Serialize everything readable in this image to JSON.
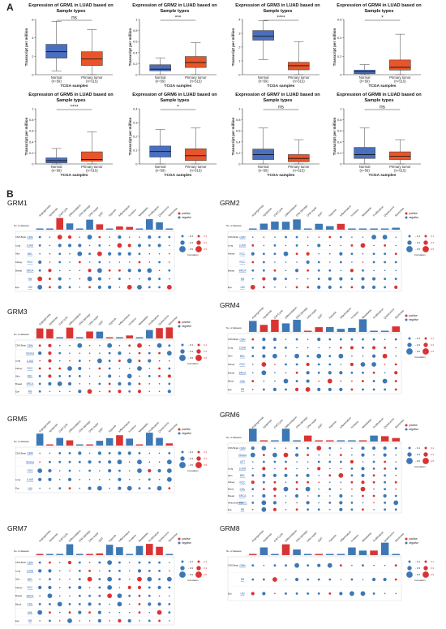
{
  "panel_labels": {
    "a": "A",
    "b": "B"
  },
  "colors": {
    "normal": "#4a6fbf",
    "tumor": "#e8552a",
    "positive": "#d93434",
    "negative": "#3d78b5"
  },
  "boxplot_common": {
    "ylabel": "Transcript per million",
    "xlabel": "TCGA samples",
    "cat_normal": "Normal",
    "cat_tumor": "Primary tumor",
    "n_normal": "(n=59)",
    "n_tumor": "(n=515)"
  },
  "chart_data": [
    {
      "type": "box",
      "title": "Expression of GRM1 in LUAD based on Sample types",
      "sig": "ns",
      "ylim": [
        0,
        6
      ],
      "yticks": [
        0,
        2,
        4,
        6
      ],
      "boxes": [
        {
          "category": "Normal",
          "min": 0.4,
          "q1": 1.8,
          "median": 2.5,
          "q3": 3.3,
          "max": 5.8
        },
        {
          "category": "Primary tumor",
          "min": 0,
          "q1": 1.0,
          "median": 1.7,
          "q3": 2.5,
          "max": 4.9
        }
      ]
    },
    {
      "type": "box",
      "title": "Expression of GRM2 in LUAD based on Sample types",
      "sig": "***",
      "ylim": [
        0,
        1
      ],
      "yticks": [
        0,
        0.2,
        0.4,
        0.6,
        0.8,
        1
      ],
      "boxes": [
        {
          "category": "Normal",
          "min": 0,
          "q1": 0.07,
          "median": 0.1,
          "q3": 0.18,
          "max": 0.3
        },
        {
          "category": "Primary tumor",
          "min": 0,
          "q1": 0.13,
          "median": 0.22,
          "q3": 0.33,
          "max": 0.58
        }
      ]
    },
    {
      "type": "box",
      "title": "Expression of GRM3 in LUAD based on Sample types",
      "sig": "****",
      "ylim": [
        0,
        4
      ],
      "yticks": [
        0,
        1,
        2,
        3,
        4
      ],
      "boxes": [
        {
          "category": "Normal",
          "min": 1.1,
          "q1": 2.5,
          "median": 2.8,
          "q3": 3.2,
          "max": 3.9
        },
        {
          "category": "Primary tumor",
          "min": 0,
          "q1": 0.35,
          "median": 0.65,
          "q3": 0.9,
          "max": 2.4
        }
      ]
    },
    {
      "type": "box",
      "title": "Expression of GRM4 in LUAD based on Sample types",
      "sig": "*",
      "ylim": [
        0,
        0.6
      ],
      "yticks": [
        0,
        0.2,
        0.4,
        0.6
      ],
      "boxes": [
        {
          "category": "Normal",
          "min": 0,
          "q1": 0.01,
          "median": 0.03,
          "q3": 0.05,
          "max": 0.11
        },
        {
          "category": "Primary tumor",
          "min": 0,
          "q1": 0.05,
          "median": 0.08,
          "q3": 0.16,
          "max": 0.44
        }
      ]
    },
    {
      "type": "box",
      "title": "Expression of GRM5 in LUAD based on Sample types",
      "sig": "****",
      "ylim": [
        0,
        1
      ],
      "yticks": [
        0,
        0.2,
        0.4,
        0.6,
        0.8,
        1
      ],
      "boxes": [
        {
          "category": "Normal",
          "min": 0,
          "q1": 0.02,
          "median": 0.06,
          "q3": 0.11,
          "max": 0.28
        },
        {
          "category": "Primary tumor",
          "min": 0,
          "q1": 0.05,
          "median": 0.08,
          "q3": 0.22,
          "max": 0.58
        }
      ]
    },
    {
      "type": "box",
      "title": "Expression of GRM6 in LUAD based on Sample types",
      "sig": "*",
      "ylim": [
        0,
        0.4
      ],
      "yticks": [
        0,
        0.1,
        0.2,
        0.3,
        0.4
      ],
      "boxes": [
        {
          "category": "Normal",
          "min": 0,
          "q1": 0.05,
          "median": 0.09,
          "q3": 0.13,
          "max": 0.25
        },
        {
          "category": "Primary tumor",
          "min": 0,
          "q1": 0.025,
          "median": 0.06,
          "q3": 0.11,
          "max": 0.26
        }
      ]
    },
    {
      "type": "box",
      "title": "Expression of GRM7 in LUAD based on Sample types",
      "sig": "ns",
      "ylim": [
        0,
        1
      ],
      "yticks": [
        0,
        0.2,
        0.4,
        0.6,
        0.8,
        1
      ],
      "boxes": [
        {
          "category": "Normal",
          "min": 0,
          "q1": 0.08,
          "median": 0.17,
          "q3": 0.27,
          "max": 0.65
        },
        {
          "category": "Primary tumor",
          "min": 0,
          "q1": 0.04,
          "median": 0.1,
          "q3": 0.17,
          "max": 0.44
        }
      ]
    },
    {
      "type": "box",
      "title": "Expression of GRM8 in LUAD based on Sample types",
      "sig": "ns",
      "ylim": [
        0,
        1
      ],
      "yticks": [
        0,
        0.2,
        0.4,
        0.6,
        0.8,
        1
      ],
      "boxes": [
        {
          "category": "Normal",
          "min": 0,
          "q1": 0.1,
          "median": 0.17,
          "q3": 0.3,
          "max": 0.65
        },
        {
          "category": "Primary tumor",
          "min": 0,
          "q1": 0.08,
          "median": 0.14,
          "q3": 0.22,
          "max": 0.44
        }
      ]
    }
  ],
  "cancersea": {
    "states": [
      "Angiogenesis",
      "Apoptosis",
      "Cell Cycle",
      "Differentiation",
      "DNA damage",
      "DNA repair",
      "EMT",
      "Hypoxia",
      "Inflammation",
      "Invasion",
      "Metastasis",
      "Proliferation",
      "Quiescence",
      "Stemness"
    ],
    "legend_positive": "positive",
    "legend_negative": "negative",
    "legend_sizes": [
      "0.1",
      "0.3",
      "0.5"
    ],
    "legend_caption": "Correlation",
    "row_caption": "No. of datasets",
    "panels": [
      {
        "name": "GRM1",
        "rows": [
          [
            "CNS Brain",
            "GBM"
          ],
          [
            "Lung",
            "LUAD"
          ],
          [
            "Skin",
            "MEL"
          ],
          [
            "Kidney",
            "RCC"
          ],
          [
            "Breast",
            "BRCA"
          ],
          [
            "",
            "RB"
          ],
          [
            "Eye",
            "UM"
          ]
        ]
      },
      {
        "name": "GRM2",
        "rows": [
          [
            "CNS Brain",
            "GBM"
          ],
          [
            "Lung",
            "LUAD"
          ],
          [
            "Kidney",
            "RCC"
          ],
          [
            "",
            "RCC"
          ],
          [
            "Breast",
            "BRCA"
          ],
          [
            "",
            "RB"
          ],
          [
            "Eye",
            "UM"
          ]
        ]
      },
      {
        "name": "GRM3",
        "rows": [
          [
            "CNS Brain",
            "GBM"
          ],
          [
            "",
            "Glioma"
          ],
          [
            "Lung",
            "LUAD"
          ],
          [
            "Kidney",
            "RCC"
          ],
          [
            "Skin",
            "MEL"
          ],
          [
            "Breast",
            "BRCA"
          ],
          [
            "Eye",
            "RB"
          ]
        ]
      },
      {
        "name": "GRM4",
        "rows": [
          [
            "CNS Brain",
            "GBM"
          ],
          [
            "Lung",
            "LUAD"
          ],
          [
            "Skin",
            "MEL"
          ],
          [
            "Kidney",
            "RCC"
          ],
          [
            "Breast",
            "BRCA"
          ],
          [
            "Blood",
            "CML"
          ],
          [
            "Eye",
            "RB"
          ]
        ]
      },
      {
        "name": "GRM5",
        "rows": [
          [
            "CNS Brain",
            "GBM"
          ],
          [
            "",
            "Glioma"
          ],
          [
            "",
            "ODG"
          ],
          [
            "Lung",
            "LUAD"
          ],
          [
            "Eye",
            "UM"
          ]
        ]
      },
      {
        "name": "GRM6",
        "rows": [
          [
            "CNS Brain",
            "GBM"
          ],
          [
            "",
            "Glioma"
          ],
          [
            "",
            "AST"
          ],
          [
            "Lung",
            "LUAD"
          ],
          [
            "Skin",
            "MEL"
          ],
          [
            "Kidney",
            "RCC"
          ],
          [
            "Blood",
            "CML"
          ],
          [
            "Breast",
            "BRCA"
          ],
          [
            "Head and neck",
            "HNSCC"
          ],
          [
            "Eye",
            "RB"
          ]
        ]
      },
      {
        "name": "GRM7",
        "rows": [
          [
            "CNS Brain",
            "GBM"
          ],
          [
            "Lung",
            "LUAD"
          ],
          [
            "Skin",
            "MEL"
          ],
          [
            "Kidney",
            "RCC"
          ],
          [
            "Breast",
            "BRCA"
          ],
          [
            "Blood",
            "CML"
          ],
          [
            "",
            "AML"
          ],
          [
            "Eye",
            "RB"
          ]
        ]
      },
      {
        "name": "GRM8",
        "rows": [
          [
            "CNS Brain",
            "GBM"
          ],
          [
            "",
            "RB"
          ],
          [
            "Eye",
            "UM"
          ]
        ]
      }
    ]
  }
}
